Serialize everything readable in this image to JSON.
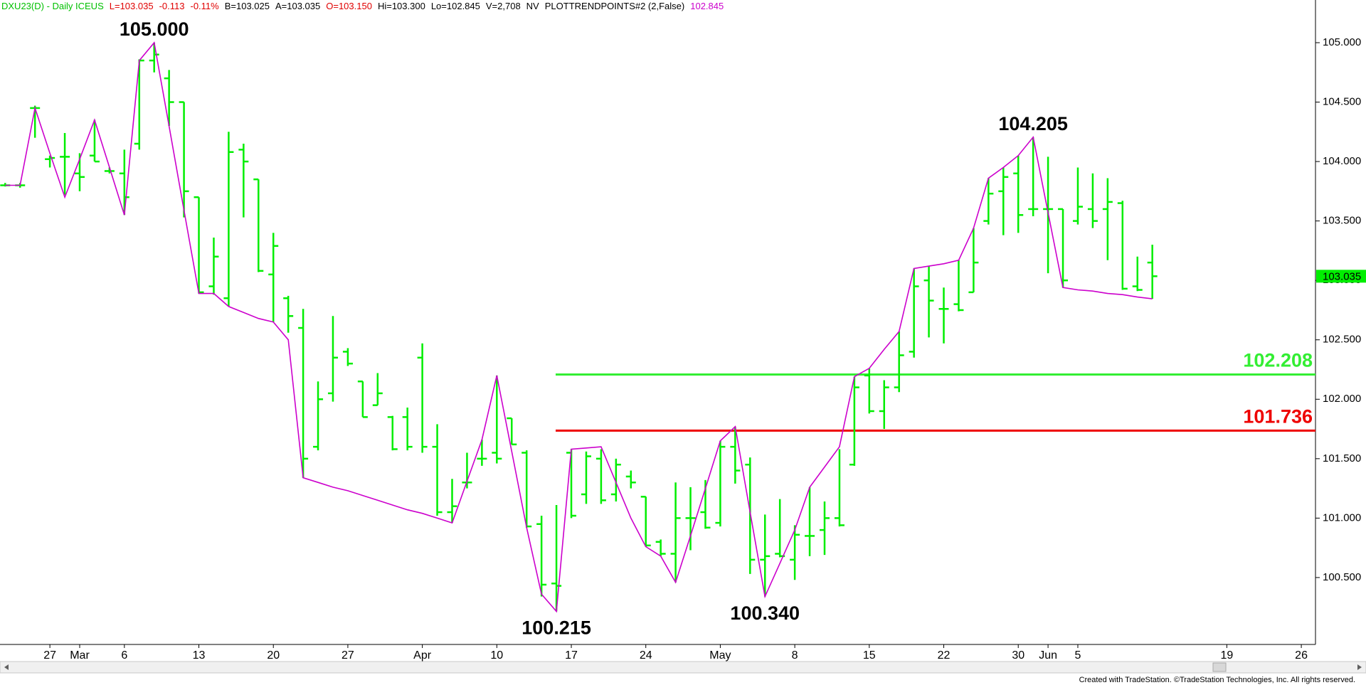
{
  "chart_data": {
    "type": "ohlc",
    "header_items": [
      {
        "text": "DXU23(D) - Daily  ICEUS",
        "color": "#00c000"
      },
      {
        "text": "L=103.035",
        "color": "#e00000"
      },
      {
        "text": "-0.113",
        "color": "#e00000"
      },
      {
        "text": "-0.11%",
        "color": "#e00000"
      },
      {
        "text": "B=103.025",
        "color": "#000000"
      },
      {
        "text": "A=103.035",
        "color": "#000000"
      },
      {
        "text": "O=103.150",
        "color": "#e00000"
      },
      {
        "text": "Hi=103.300",
        "color": "#000000"
      },
      {
        "text": "Lo=102.845",
        "color": "#000000"
      },
      {
        "text": "V=2,708",
        "color": "#000000"
      },
      {
        "text": "NV",
        "color": "#000000"
      },
      {
        "text": "PLOTTRENDPOINTS#2 (2,False)",
        "color": "#000000"
      },
      {
        "text": "102.845",
        "color": "#cc00cc"
      }
    ],
    "categories": [
      null,
      null,
      null,
      "27",
      null,
      "Mar",
      null,
      null,
      "6",
      null,
      null,
      null,
      null,
      "13",
      null,
      null,
      null,
      null,
      "20",
      null,
      null,
      null,
      null,
      "27",
      null,
      null,
      null,
      null,
      "Apr",
      null,
      null,
      null,
      null,
      "10",
      null,
      null,
      null,
      null,
      "17",
      null,
      null,
      null,
      null,
      "24",
      null,
      null,
      null,
      null,
      "May",
      null,
      null,
      null,
      null,
      "8",
      null,
      null,
      null,
      null,
      "15",
      null,
      null,
      null,
      null,
      "22",
      null,
      null,
      null,
      null,
      "30",
      null,
      "Jun",
      null,
      "5",
      null,
      null,
      null,
      null,
      null,
      null,
      null,
      null,
      null,
      "19",
      null,
      null,
      null,
      null,
      "26",
      null
    ],
    "color": "#00ee00",
    "open": [
      103.8,
      103.8,
      104.45,
      104.02,
      104.04,
      103.9,
      104.05,
      103.92,
      103.9,
      104.15,
      104.85,
      104.7,
      104.5,
      103.7,
      102.95,
      102.85,
      104.1,
      103.85,
      103.05,
      102.85,
      102.6,
      101.6,
      102.05,
      102.4,
      102.15,
      101.95,
      101.85,
      101.85,
      102.35,
      101.6,
      101.05,
      101.3,
      101.5,
      101.55,
      101.84,
      101.55,
      100.95,
      100.45,
      101.55,
      101.2,
      101.5,
      101.2,
      101.35,
      101.18,
      100.8,
      100.7,
      101.0,
      101.05,
      100.96,
      101.6,
      101.45,
      100.65,
      100.7,
      100.65,
      100.85,
      100.9,
      101.0,
      101.45,
      102.2,
      101.9,
      102.1,
      102.4,
      103.0,
      102.76,
      102.8,
      102.9,
      103.5,
      103.75,
      103.9,
      103.6,
      103.6,
      103.6,
      103.5,
      103.6,
      103.6,
      103.65,
      102.95,
      103.15,
      null,
      null,
      null,
      null,
      null,
      null,
      null,
      null,
      null,
      null,
      null
    ],
    "high": [
      103.82,
      103.82,
      104.47,
      104.05,
      104.24,
      104.07,
      104.35,
      103.95,
      104.1,
      104.86,
      105.0,
      104.77,
      104.5,
      103.7,
      103.36,
      104.25,
      104.15,
      103.85,
      103.4,
      102.87,
      102.76,
      102.15,
      102.7,
      102.43,
      102.15,
      102.22,
      101.86,
      101.93,
      102.47,
      101.79,
      101.33,
      101.55,
      101.66,
      102.2,
      101.84,
      101.57,
      101.02,
      101.11,
      101.58,
      101.56,
      101.58,
      101.5,
      101.4,
      101.18,
      100.82,
      101.3,
      101.26,
      101.32,
      101.65,
      101.77,
      101.51,
      101.03,
      101.16,
      100.94,
      101.26,
      101.14,
      101.58,
      102.19,
      102.26,
      102.16,
      102.57,
      103.1,
      103.12,
      102.94,
      103.17,
      103.44,
      103.86,
      103.95,
      104.05,
      104.205,
      104.04,
      103.6,
      103.95,
      103.9,
      103.86,
      103.67,
      103.2,
      103.3,
      null,
      null,
      null,
      null,
      null,
      null,
      null,
      null,
      null,
      null,
      null
    ],
    "low": [
      103.79,
      103.78,
      104.2,
      103.95,
      103.72,
      103.75,
      104.0,
      103.9,
      103.55,
      104.1,
      104.75,
      104.3,
      103.53,
      102.89,
      102.88,
      102.78,
      103.53,
      103.07,
      102.65,
      102.56,
      101.34,
      101.57,
      101.98,
      102.28,
      101.85,
      101.95,
      101.57,
      101.57,
      101.55,
      101.02,
      100.96,
      101.25,
      101.44,
      101.46,
      101.62,
      100.92,
      100.34,
      100.215,
      101.0,
      101.12,
      101.12,
      101.14,
      101.25,
      100.76,
      100.68,
      100.46,
      100.73,
      100.91,
      100.93,
      101.29,
      100.53,
      100.34,
      100.67,
      100.48,
      100.68,
      100.69,
      100.93,
      101.44,
      101.88,
      101.75,
      102.06,
      102.35,
      102.52,
      102.47,
      102.74,
      102.9,
      103.47,
      103.38,
      103.4,
      103.54,
      103.06,
      102.94,
      103.47,
      103.44,
      103.17,
      102.92,
      102.91,
      102.845,
      null,
      null,
      null,
      null,
      null,
      null,
      null,
      null,
      null,
      null,
      null
    ],
    "close": [
      103.8,
      103.8,
      104.45,
      104.03,
      104.04,
      103.87,
      104.0,
      103.92,
      103.7,
      104.85,
      104.9,
      104.5,
      103.75,
      102.9,
      103.2,
      104.08,
      104.0,
      103.08,
      103.29,
      102.7,
      101.5,
      102.0,
      102.35,
      102.3,
      101.85,
      102.05,
      101.58,
      101.6,
      101.6,
      101.05,
      101.1,
      101.3,
      101.5,
      101.5,
      101.62,
      100.93,
      100.44,
      100.43,
      101.02,
      101.52,
      101.15,
      101.45,
      101.3,
      100.77,
      100.7,
      101.0,
      101.0,
      100.92,
      101.6,
      101.4,
      100.65,
      100.68,
      100.68,
      100.86,
      100.85,
      101.0,
      100.94,
      102.1,
      101.9,
      102.1,
      102.37,
      102.95,
      102.83,
      102.76,
      102.75,
      103.15,
      103.73,
      103.87,
      103.55,
      103.6,
      103.6,
      103.0,
      103.62,
      103.5,
      103.66,
      102.93,
      102.92,
      103.035,
      null,
      null,
      null,
      null,
      null,
      null,
      null,
      null,
      null,
      null,
      null
    ],
    "trend": {
      "color": "#cc00cc",
      "values": [
        103.8,
        103.8,
        104.45,
        104.07,
        103.7,
        104.02,
        104.35,
        103.95,
        103.55,
        104.85,
        105.0,
        104.3,
        103.59,
        102.89,
        102.89,
        102.78,
        102.73,
        102.68,
        102.65,
        102.5,
        101.34,
        101.3,
        101.26,
        101.23,
        101.19,
        101.15,
        101.11,
        101.07,
        101.04,
        101.0,
        100.96,
        101.31,
        101.66,
        102.2,
        101.56,
        100.92,
        100.36,
        100.215,
        101.58,
        101.59,
        101.6,
        101.3,
        101.0,
        100.76,
        100.68,
        100.46,
        100.85,
        101.25,
        101.65,
        101.77,
        101.05,
        100.34,
        100.62,
        100.9,
        101.26,
        101.43,
        101.6,
        102.19,
        102.26,
        102.42,
        102.57,
        103.1,
        103.12,
        103.14,
        103.17,
        103.44,
        103.86,
        103.95,
        104.05,
        104.205,
        103.57,
        102.94,
        102.92,
        102.91,
        102.89,
        102.88,
        102.86,
        102.845,
        null,
        null,
        null,
        null,
        null,
        null,
        null,
        null,
        null,
        null,
        null
      ]
    },
    "annotations": [
      {
        "value": 105.0,
        "label": "105.000"
      },
      {
        "value": 104.205,
        "label": "104.205"
      },
      {
        "value": 100.215,
        "label": "100.215"
      },
      {
        "value": 100.34,
        "label": "100.340"
      }
    ],
    "hlines": [
      {
        "value": 102.208,
        "color": "#33ee33"
      },
      {
        "value": 101.736,
        "color": "#ee0000"
      }
    ],
    "last_price": {
      "value": 103.035,
      "label": "103.035",
      "color": "#00ee00"
    },
    "ylim": [
      99.937,
      105.359
    ],
    "yticks": [
      {
        "value": 100.5,
        "label": "100.500"
      },
      {
        "value": 101.0,
        "label": "101.000"
      },
      {
        "value": 101.5,
        "label": "101.500"
      },
      {
        "value": 102.0,
        "label": "102.000"
      },
      {
        "value": 102.5,
        "label": "102.500"
      },
      {
        "value": 103.0,
        "label": "103.000"
      },
      {
        "value": 103.5,
        "label": "103.500"
      },
      {
        "value": 104.0,
        "label": "104.000"
      },
      {
        "value": 104.5,
        "label": "104.500"
      },
      {
        "value": 105.0,
        "label": "105.000"
      }
    ],
    "grid": false,
    "footer": "Created with TradeStation. ©TradeStation Technologies, Inc. All rights reserved."
  }
}
